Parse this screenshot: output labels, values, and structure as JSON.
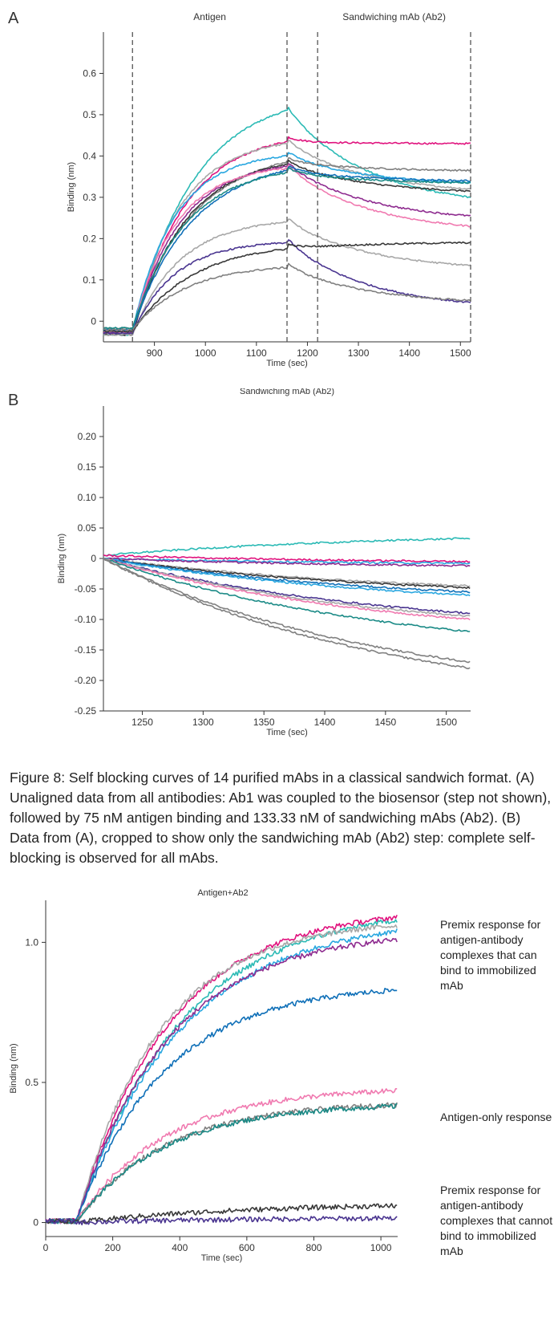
{
  "panel_labels": {
    "a": "A",
    "b": "B"
  },
  "caption": "Figure 8: Self blocking curves of 14 purified mAbs in a classical sandwich format. (A) Unaligned data from all antibodies: Ab1 was coupled to the biosensor (step not shown), followed by 75 nM antigen binding and 133.33 nM of sandwiching mAbs (Ab2). (B) Data from (A), cropped to show only the sandwiching mAb (Ab2) step: complete self-blocking is observed for all mAbs.",
  "annotations": {
    "premix_bind": "Premix response for antigen-antibody complexes that can bind to immobilized mAb",
    "antigen_only": "Antigen-only response",
    "premix_nobind": "Premix response for antigen-antibody complexes that cannot bind to immobilized mAb"
  },
  "chart_data": [
    {
      "type": "line",
      "panel": "A",
      "step_labels": [
        "Antigen",
        "Sandwiching mAb (Ab2)"
      ],
      "xlabel": "Time (sec)",
      "ylabel": "Binding (nm)",
      "xlim": [
        800,
        1520
      ],
      "ylim": [
        -0.05,
        0.7
      ],
      "xticks": [
        900,
        1000,
        1100,
        1200,
        1300,
        1400,
        1500
      ],
      "yticks": [
        0,
        0.1,
        0.2,
        0.3,
        0.4,
        0.5,
        0.6
      ],
      "ytick_labels": [
        "0",
        "0.1",
        "0.2",
        "0.3",
        "0.4",
        "0.5",
        "0.6"
      ],
      "step_boundaries": [
        857,
        1160,
        1220,
        1520
      ],
      "baseline": -0.025,
      "t_start": 800,
      "t_antigen": 857,
      "t_ab2": 1160,
      "t_end": 1520,
      "series": [
        {
          "color": "#2bbab5",
          "antigen_end": 0.51,
          "end": 0.3
        },
        {
          "color": "#e0137e",
          "antigen_end": 0.435,
          "end": 0.43
        },
        {
          "color": "#a8a8a8",
          "antigen_end": 0.43,
          "end": 0.32
        },
        {
          "color": "#29a7e0",
          "antigen_end": 0.4,
          "end": 0.335
        },
        {
          "color": "#808080",
          "antigen_end": 0.385,
          "end": 0.365
        },
        {
          "color": "#383838",
          "antigen_end": 0.38,
          "end": 0.315
        },
        {
          "color": "#8e2b8f",
          "antigen_end": 0.375,
          "end": 0.255
        },
        {
          "color": "#f07ab0",
          "antigen_end": 0.37,
          "end": 0.23
        },
        {
          "color": "#1070b8",
          "antigen_end": 0.365,
          "end": 0.34
        },
        {
          "color": "#1a8a86",
          "antigen_end": 0.36,
          "end": 0.335
        },
        {
          "color": "#a8a8a8",
          "antigen_end": 0.24,
          "end": 0.135
        },
        {
          "color": "#4a3590",
          "antigen_end": 0.19,
          "end": 0.045
        },
        {
          "color": "#383838",
          "antigen_end": 0.175,
          "end": 0.19
        },
        {
          "color": "#808080",
          "antigen_end": 0.13,
          "end": 0.05
        }
      ]
    },
    {
      "type": "line",
      "panel": "B",
      "step_labels": [
        "Sandwiching mAb (Ab2)"
      ],
      "xlabel": "Time (sec)",
      "ylabel": "Binding (nm)",
      "xlim": [
        1218,
        1520
      ],
      "ylim": [
        -0.25,
        0.25
      ],
      "xticks": [
        1250,
        1300,
        1350,
        1400,
        1450,
        1500
      ],
      "yticks": [
        -0.25,
        -0.2,
        -0.15,
        -0.1,
        -0.05,
        0,
        0.05,
        0.1,
        0.15,
        0.2
      ],
      "ytick_labels": [
        "-0.25",
        "-0.20",
        "-0.15",
        "-0.10",
        "-0.05",
        "0",
        "0.05",
        "0.10",
        "0.15",
        "0.20"
      ],
      "series": [
        {
          "color": "#2bbab5",
          "start": 0.005,
          "end": 0.033
        },
        {
          "color": "#e0137e",
          "start": 0.005,
          "end": -0.005
        },
        {
          "color": "#29a7e0",
          "start": 0.0,
          "end": -0.008
        },
        {
          "color": "#8e2b8f",
          "start": 0.0,
          "end": -0.012
        },
        {
          "color": "#a8a8a8",
          "start": 0.0,
          "end": -0.045
        },
        {
          "color": "#383838",
          "start": 0.0,
          "end": -0.048
        },
        {
          "color": "#1070b8",
          "start": 0.0,
          "end": -0.055
        },
        {
          "color": "#29a7e0",
          "start": 0.0,
          "end": -0.06
        },
        {
          "color": "#4a3590",
          "start": 0.0,
          "end": -0.09
        },
        {
          "color": "#a8a8a8",
          "start": 0.0,
          "end": -0.095
        },
        {
          "color": "#f07ab0",
          "start": 0.0,
          "end": -0.1
        },
        {
          "color": "#1a8a86",
          "start": 0.0,
          "end": -0.12
        },
        {
          "color": "#808080",
          "start": 0.0,
          "end": -0.17
        },
        {
          "color": "#808080",
          "start": 0.0,
          "end": -0.18
        }
      ]
    },
    {
      "type": "line",
      "panel": "C",
      "step_labels": [
        "Antigen+Ab2"
      ],
      "xlabel": "Time (sec)",
      "ylabel": "Binding (nm)",
      "xlim": [
        0,
        1050
      ],
      "ylim": [
        -0.05,
        1.15
      ],
      "xticks": [
        0,
        200,
        400,
        600,
        800,
        1000
      ],
      "yticks": [
        0,
        0.5,
        1.0
      ],
      "ytick_labels": [
        "0",
        "0.5",
        "1.0"
      ],
      "association_start": 90,
      "series": [
        {
          "color": "#2bbab5",
          "plateau": 1.08
        },
        {
          "color": "#e0137e",
          "plateau": 1.09
        },
        {
          "color": "#a8a8a8",
          "plateau": 1.06
        },
        {
          "color": "#29a7e0",
          "plateau": 1.04
        },
        {
          "color": "#8e2b8f",
          "plateau": 1.01
        },
        {
          "color": "#1070b8",
          "plateau": 0.83
        },
        {
          "color": "#f07ab0",
          "plateau": 0.47
        },
        {
          "color": "#808080",
          "plateau": 0.42
        },
        {
          "color": "#1a8a86",
          "plateau": 0.415
        },
        {
          "color": "#383838",
          "plateau": 0.06
        },
        {
          "color": "#4a3590",
          "plateau": 0.015
        }
      ]
    }
  ]
}
